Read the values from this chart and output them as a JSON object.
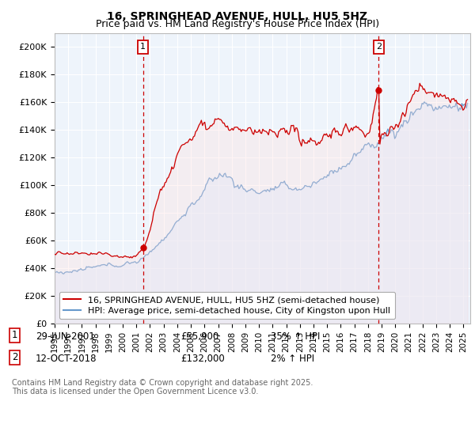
{
  "title1": "16, SPRINGHEAD AVENUE, HULL, HU5 5HZ",
  "title2": "Price paid vs. HM Land Registry's House Price Index (HPI)",
  "ylabel_ticks": [
    "£0",
    "£20K",
    "£40K",
    "£60K",
    "£80K",
    "£100K",
    "£120K",
    "£140K",
    "£160K",
    "£180K",
    "£200K"
  ],
  "ytick_values": [
    0,
    20000,
    40000,
    60000,
    80000,
    100000,
    120000,
    140000,
    160000,
    180000,
    200000
  ],
  "ylim": [
    0,
    210000
  ],
  "xlim_start": 1995.0,
  "xlim_end": 2025.5,
  "xticks": [
    1995,
    1996,
    1997,
    1998,
    1999,
    2000,
    2001,
    2002,
    2003,
    2004,
    2005,
    2006,
    2007,
    2008,
    2009,
    2010,
    2011,
    2012,
    2013,
    2014,
    2015,
    2016,
    2017,
    2018,
    2019,
    2020,
    2021,
    2022,
    2023,
    2024,
    2025
  ],
  "red_line_color": "#cc0000",
  "blue_line_color": "#6699cc",
  "blue_fill_color": "#ddeeff",
  "vline_color": "#cc0000",
  "background_color": "#ffffff",
  "plot_bg_color": "#eef4fb",
  "grid_color": "#ffffff",
  "marker1_date": 2001.49,
  "marker1_price": 55900,
  "marker2_date": 2018.78,
  "marker2_price": 132000,
  "legend_line1": "16, SPRINGHEAD AVENUE, HULL, HU5 5HZ (semi-detached house)",
  "legend_line2": "HPI: Average price, semi-detached house, City of Kingston upon Hull",
  "annotation1_date": "29-JUN-2001",
  "annotation1_price": "£55,900",
  "annotation1_hpi": "35% ↑ HPI",
  "annotation2_date": "12-OCT-2018",
  "annotation2_price": "£132,000",
  "annotation2_hpi": "2% ↑ HPI",
  "footnote": "Contains HM Land Registry data © Crown copyright and database right 2025.\nThis data is licensed under the Open Government Licence v3.0.",
  "title_fontsize": 10,
  "subtitle_fontsize": 9,
  "tick_fontsize": 8,
  "legend_fontsize": 8,
  "annotation_fontsize": 8.5
}
